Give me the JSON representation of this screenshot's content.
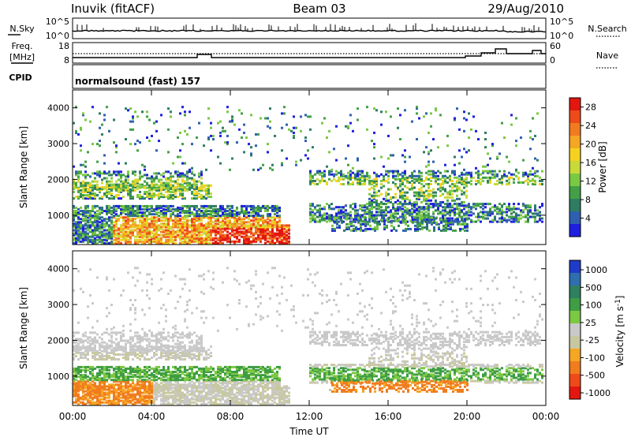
{
  "header": {
    "station": "Inuvik (fitACF)",
    "beam": "Beam 03",
    "date": "29/Aug/2010"
  },
  "nsky_panel": {
    "left_label": "N.Sky",
    "right_label": "N.Search",
    "left_ticks": [
      "10^5",
      "10^0"
    ],
    "right_ticks": [
      "10^5",
      "10^0"
    ]
  },
  "freq_panel": {
    "left_label_1": "Freq.",
    "left_label_2": "[MHz]",
    "right_label": "Nave",
    "left_ticks": [
      "18",
      "8"
    ],
    "right_ticks": [
      "60",
      "0"
    ]
  },
  "cpid": {
    "label": "CPID",
    "program": "normalsound (fast) 157"
  },
  "colors": {
    "power_scale": [
      "#1f1fe0",
      "#2f60b0",
      "#2e7d62",
      "#43a047",
      "#7ac943",
      "#c9d93a",
      "#f5d21f",
      "#f5a623",
      "#f07c1f",
      "#ee4a1a",
      "#e3170f"
    ],
    "velocity_scale": [
      "#1f3cc8",
      "#2f6fb0",
      "#2e8060",
      "#3f9d45",
      "#7dc843",
      "#c9c9c9",
      "#c8c8a0",
      "#f5a623",
      "#f07c1f",
      "#ee4a1a",
      "#e3170f"
    ]
  },
  "chart_data": [
    {
      "type": "heatmap",
      "title": "",
      "xlabel": "",
      "ylabel": "Slant Range [km]",
      "xlim": [
        "00:00",
        "24:00"
      ],
      "ylim": [
        180,
        4500
      ],
      "x_ticks": [
        "00:00",
        "04:00",
        "08:00",
        "12:00",
        "16:00",
        "20:00",
        "00:00"
      ],
      "y_ticks": [
        1000,
        2000,
        3000,
        4000
      ],
      "colorbar": {
        "label": "Power [dB]",
        "ticks": [
          4,
          8,
          12,
          16,
          20,
          24,
          28
        ],
        "range": [
          0,
          30
        ]
      }
    },
    {
      "type": "heatmap",
      "title": "",
      "xlabel": "Time UT",
      "ylabel": "Slant Range [km]",
      "xlim": [
        "00:00",
        "24:00"
      ],
      "ylim": [
        180,
        4500
      ],
      "x_ticks": [
        "00:00",
        "04:00",
        "08:00",
        "12:00",
        "16:00",
        "20:00",
        "00:00"
      ],
      "y_ticks": [
        1000,
        2000,
        3000,
        4000
      ],
      "colorbar": {
        "label": "Velocity [m s^-1]",
        "ticks": [
          1000,
          500,
          100,
          25,
          -25,
          -100,
          -500,
          -1000
        ]
      }
    }
  ]
}
